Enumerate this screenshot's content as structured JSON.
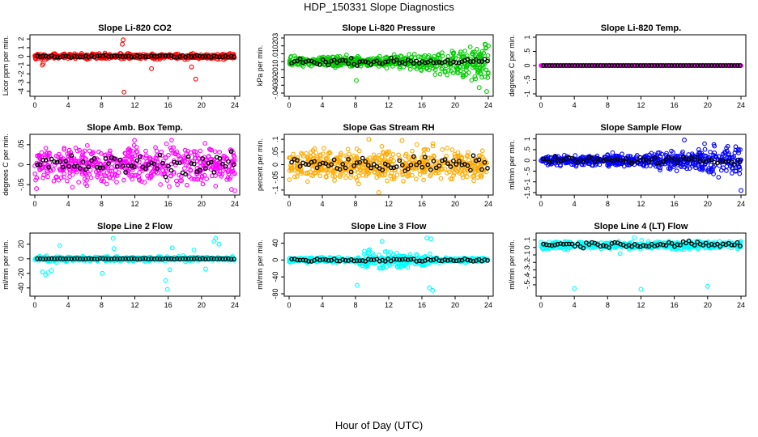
{
  "figure": {
    "title": "HDP_150331  Slope Diagnostics",
    "xlabel": "Hour of Day (UTC)"
  },
  "chart_data": [
    {
      "type": "scatter",
      "title": "Slope Li-820 CO2",
      "ylabel": "Licor ppm per min.",
      "xlim": [
        0,
        24
      ],
      "ylim": [
        -4.3,
        2.2
      ],
      "xticks": [
        0,
        4,
        8,
        12,
        16,
        20,
        24
      ],
      "yticks": [
        -4,
        -3,
        -2,
        -1,
        0,
        1,
        2
      ],
      "color": "#ff0000",
      "band": [
        -0.3,
        0.3
      ],
      "black_band": [
        -0.12,
        0.12
      ],
      "outliers": [
        [
          10.6,
          1.9
        ],
        [
          10.5,
          1.4
        ],
        [
          10.7,
          -4.1
        ],
        [
          14,
          -1.4
        ],
        [
          19.3,
          -2.6
        ],
        [
          18.8,
          -1.2
        ],
        [
          0.9,
          -1
        ],
        [
          1,
          -0.8
        ]
      ]
    },
    {
      "type": "scatter",
      "title": "Slope Li-820 Pressure",
      "ylabel": "kPa per min.",
      "xlim": [
        0,
        24
      ],
      "ylim": [
        -0.041,
        0.031
      ],
      "xticks": [
        0,
        4,
        8,
        12,
        16,
        20,
        24
      ],
      "yticks": [
        -0.04,
        -0.03,
        -0.02,
        -0.01,
        0,
        0.01,
        0.02,
        0.03
      ],
      "color": "#00cc00",
      "band": [
        -0.006,
        0.006
      ],
      "band_end": [
        -0.03,
        0.025
      ],
      "black_band": [
        -0.004,
        0.004
      ],
      "outliers": [
        [
          8.1,
          -0.024
        ],
        [
          23.6,
          0.022
        ],
        [
          24,
          0.02
        ],
        [
          22.9,
          -0.033
        ],
        [
          23.8,
          -0.038
        ]
      ]
    },
    {
      "type": "scatter",
      "title": "Slope Li-820 Temp.",
      "ylabel": "degrees C per min.",
      "xlim": [
        0,
        24
      ],
      "ylim": [
        -1,
        1
      ],
      "xticks": [
        0,
        4,
        8,
        12,
        16,
        20,
        24
      ],
      "yticks": [
        -1,
        -0.5,
        0,
        0.5,
        1
      ],
      "color": "#ff00ff",
      "band": [
        0,
        0
      ],
      "black_band": [
        0,
        0
      ],
      "outliers": []
    },
    {
      "type": "scatter",
      "title": "Slope Amb. Box Temp.",
      "ylabel": "degrees C per min.",
      "xlim": [
        0,
        24
      ],
      "ylim": [
        -0.07,
        0.07
      ],
      "xticks": [
        0,
        4,
        8,
        12,
        16,
        20,
        24
      ],
      "yticks": [
        -0.05,
        0,
        0.05
      ],
      "color": "#ff00ff",
      "band": [
        -0.045,
        0.045
      ],
      "black_band": [
        -0.025,
        0.025
      ],
      "outliers": [
        [
          23.6,
          -0.062
        ],
        [
          24,
          -0.065
        ],
        [
          0.2,
          -0.06
        ],
        [
          23.8,
          0.03
        ]
      ]
    },
    {
      "type": "scatter",
      "title": "Slope Gas Stream RH",
      "ylabel": "percent per min.",
      "xlim": [
        0,
        24
      ],
      "ylim": [
        -0.11,
        0.11
      ],
      "xticks": [
        0,
        4,
        8,
        12,
        16,
        20,
        24
      ],
      "yticks": [
        -0.1,
        -0.05,
        0,
        0.05,
        0.1
      ],
      "color": "#ffaa00",
      "band": [
        -0.06,
        0.06
      ],
      "black_band": [
        -0.03,
        0.03
      ],
      "outliers": [
        [
          9.6,
          0.1
        ],
        [
          10.8,
          -0.11
        ],
        [
          13.6,
          0.095
        ]
      ]
    },
    {
      "type": "scatter",
      "title": "Slope Sample Flow",
      "ylabel": "ml/min per min.",
      "xlim": [
        0,
        24
      ],
      "ylim": [
        -1.5,
        1.1
      ],
      "xticks": [
        0,
        4,
        8,
        12,
        16,
        20,
        24
      ],
      "yticks": [
        -1.5,
        -1,
        -0.5,
        0,
        0.5,
        1
      ],
      "color": "#0000ff",
      "band": [
        -0.25,
        0.25
      ],
      "band_end": [
        -0.9,
        0.9
      ],
      "black_band": [
        -0.15,
        0.15
      ],
      "outliers": [
        [
          24,
          -1.4
        ],
        [
          17.2,
          0.95
        ]
      ]
    },
    {
      "type": "scatter",
      "title": "Slope Line 2 Flow",
      "ylabel": "ml/min per min.",
      "xlim": [
        0,
        24
      ],
      "ylim": [
        -48,
        32
      ],
      "xticks": [
        0,
        4,
        8,
        12,
        16,
        20,
        24
      ],
      "yticks": [
        -40,
        -20,
        0,
        20
      ],
      "color": "#00ffff",
      "band": [
        -3,
        3
      ],
      "black_band": [
        -0.5,
        0.5
      ],
      "outliers": [
        [
          0.9,
          -18
        ],
        [
          1.3,
          -22
        ],
        [
          1.6,
          -19
        ],
        [
          2,
          -16
        ],
        [
          2.6,
          -5
        ],
        [
          3,
          18
        ],
        [
          8.1,
          -20
        ],
        [
          9.4,
          28
        ],
        [
          9.5,
          14
        ],
        [
          15.7,
          -30
        ],
        [
          15.9,
          -42
        ],
        [
          16.2,
          -15
        ],
        [
          16.5,
          15
        ],
        [
          18.1,
          -4
        ],
        [
          19.1,
          12
        ],
        [
          20.5,
          -14
        ],
        [
          21.5,
          24
        ],
        [
          21.7,
          28
        ],
        [
          22.1,
          20
        ],
        [
          23.9,
          -2
        ]
      ]
    },
    {
      "type": "scatter",
      "title": "Slope Line 3 Flow",
      "ylabel": "ml/min per min.",
      "xlim": [
        0,
        24
      ],
      "ylim": [
        -80,
        58
      ],
      "xticks": [
        0,
        4,
        8,
        12,
        16,
        20,
        24
      ],
      "yticks": [
        -80,
        -40,
        0,
        40
      ],
      "color": "#00ffff",
      "band": [
        -6,
        6
      ],
      "band_mid": [
        -30,
        30
      ],
      "black_band": [
        -4,
        4
      ],
      "outliers": [
        [
          11.2,
          44
        ],
        [
          16.6,
          52
        ],
        [
          17.1,
          50
        ],
        [
          16.9,
          -66
        ],
        [
          17.3,
          -72
        ],
        [
          8.2,
          -60
        ]
      ]
    },
    {
      "type": "scatter",
      "title": "Slope Line 4 (LT) Flow",
      "ylabel": "ml/min per min.",
      "xlim": [
        0,
        24
      ],
      "ylim": [
        -0.62,
        0.16
      ],
      "xticks": [
        0,
        4,
        8,
        12,
        16,
        20,
        24
      ],
      "yticks": [
        -0.5,
        -0.4,
        -0.3,
        -0.2,
        -0.1,
        0,
        0.1
      ],
      "color": "#00ffff",
      "band": [
        -0.02,
        0.08
      ],
      "black_band": [
        0,
        0.08
      ],
      "outliers": [
        [
          4,
          -0.55
        ],
        [
          12,
          -0.56
        ],
        [
          20,
          -0.52
        ],
        [
          11.2,
          0.13
        ],
        [
          9.5,
          -0.08
        ]
      ]
    }
  ]
}
